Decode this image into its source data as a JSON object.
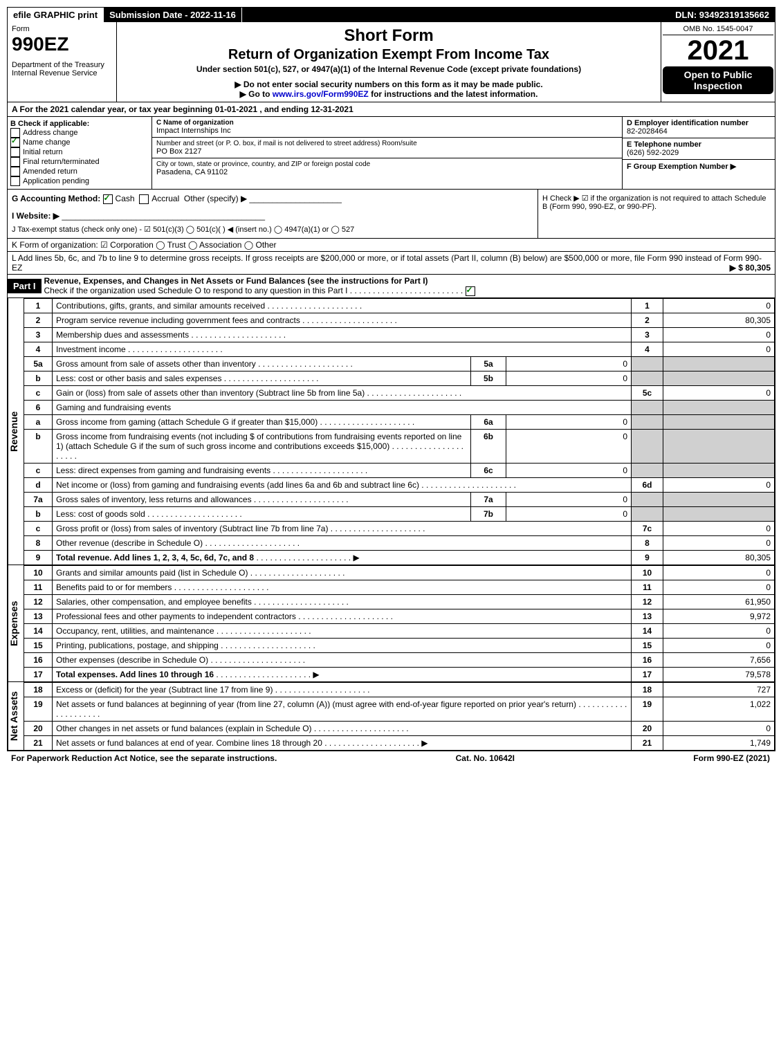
{
  "top": {
    "efile": "efile GRAPHIC print",
    "submission": "Submission Date - 2022-11-16",
    "dln": "DLN: 93492319135662"
  },
  "header": {
    "form_word": "Form",
    "form_no": "990EZ",
    "dept": "Department of the Treasury",
    "irs": "Internal Revenue Service",
    "title1": "Short Form",
    "title2": "Return of Organization Exempt From Income Tax",
    "sub1": "Under section 501(c), 527, or 4947(a)(1) of the Internal Revenue Code (except private foundations)",
    "sub2": "▶ Do not enter social security numbers on this form as it may be made public.",
    "sub3": "▶ Go to www.irs.gov/Form990EZ for instructions and the latest information.",
    "omb": "OMB No. 1545-0047",
    "year": "2021",
    "open": "Open to Public Inspection"
  },
  "section_a": "A  For the 2021 calendar year, or tax year beginning 01-01-2021 , and ending 12-31-2021",
  "b": {
    "label": "B  Check if applicable:",
    "items": [
      "Address change",
      "Name change",
      "Initial return",
      "Final return/terminated",
      "Amended return",
      "Application pending"
    ],
    "checked": [
      false,
      true,
      false,
      false,
      false,
      false
    ]
  },
  "c": {
    "name_label": "C Name of organization",
    "name": "Impact Internships Inc",
    "addr_label": "Number and street (or P. O. box, if mail is not delivered to street address)       Room/suite",
    "addr": "PO Box 2127",
    "city_label": "City or town, state or province, country, and ZIP or foreign postal code",
    "city": "Pasadena, CA  91102"
  },
  "d": {
    "label": "D Employer identification number",
    "value": "82-2028464"
  },
  "e": {
    "label": "E Telephone number",
    "value": "(626) 592-2029"
  },
  "f": {
    "label": "F Group Exemption Number  ▶",
    "value": ""
  },
  "g": {
    "label": "G Accounting Method:",
    "cash": "Cash",
    "accrual": "Accrual",
    "other": "Other (specify) ▶"
  },
  "h": {
    "text": "H  Check ▶ ☑ if the organization is not required to attach Schedule B (Form 990, 990-EZ, or 990-PF)."
  },
  "i": {
    "label": "I Website: ▶"
  },
  "j": {
    "label": "J Tax-exempt status (check only one) - ☑ 501(c)(3)  ◯ 501(c)(  ) ◀ (insert no.)  ◯ 4947(a)(1) or  ◯ 527"
  },
  "k": {
    "label": "K Form of organization:  ☑ Corporation   ◯ Trust   ◯ Association   ◯ Other"
  },
  "l": {
    "text": "L Add lines 5b, 6c, and 7b to line 9 to determine gross receipts. If gross receipts are $200,000 or more, or if total assets (Part II, column (B) below) are $500,000 or more, file Form 990 instead of Form 990-EZ",
    "amount": "▶ $ 80,305"
  },
  "part1": {
    "title": "Part I",
    "desc": "Revenue, Expenses, and Changes in Net Assets or Fund Balances (see the instructions for Part I)",
    "check": "Check if the organization used Schedule O to respond to any question in this Part I"
  },
  "side_labels": {
    "rev": "Revenue",
    "exp": "Expenses",
    "net": "Net Assets"
  },
  "revenue": [
    {
      "n": "1",
      "label": "Contributions, gifts, grants, and similar amounts received",
      "ln": "1",
      "amt": "0"
    },
    {
      "n": "2",
      "label": "Program service revenue including government fees and contracts",
      "ln": "2",
      "amt": "80,305"
    },
    {
      "n": "3",
      "label": "Membership dues and assessments",
      "ln": "3",
      "amt": "0"
    },
    {
      "n": "4",
      "label": "Investment income",
      "ln": "4",
      "amt": "0"
    },
    {
      "n": "5a",
      "label": "Gross amount from sale of assets other than inventory",
      "sub": "5a",
      "subv": "0"
    },
    {
      "n": "b",
      "label": "Less: cost or other basis and sales expenses",
      "sub": "5b",
      "subv": "0"
    },
    {
      "n": "c",
      "label": "Gain or (loss) from sale of assets other than inventory (Subtract line 5b from line 5a)",
      "ln": "5c",
      "amt": "0"
    },
    {
      "n": "6",
      "label": "Gaming and fundraising events"
    },
    {
      "n": "a",
      "label": "Gross income from gaming (attach Schedule G if greater than $15,000)",
      "sub": "6a",
      "subv": "0"
    },
    {
      "n": "b",
      "label": "Gross income from fundraising events (not including $            of contributions from fundraising events reported on line 1) (attach Schedule G if the sum of such gross income and contributions exceeds $15,000)",
      "sub": "6b",
      "subv": "0"
    },
    {
      "n": "c",
      "label": "Less: direct expenses from gaming and fundraising events",
      "sub": "6c",
      "subv": "0"
    },
    {
      "n": "d",
      "label": "Net income or (loss) from gaming and fundraising events (add lines 6a and 6b and subtract line 6c)",
      "ln": "6d",
      "amt": "0"
    },
    {
      "n": "7a",
      "label": "Gross sales of inventory, less returns and allowances",
      "sub": "7a",
      "subv": "0"
    },
    {
      "n": "b",
      "label": "Less: cost of goods sold",
      "sub": "7b",
      "subv": "0"
    },
    {
      "n": "c",
      "label": "Gross profit or (loss) from sales of inventory (Subtract line 7b from line 7a)",
      "ln": "7c",
      "amt": "0"
    },
    {
      "n": "8",
      "label": "Other revenue (describe in Schedule O)",
      "ln": "8",
      "amt": "0"
    },
    {
      "n": "9",
      "label": "Total revenue. Add lines 1, 2, 3, 4, 5c, 6d, 7c, and 8",
      "ln": "9",
      "amt": "80,305",
      "bold": true,
      "arrow": true
    }
  ],
  "expenses": [
    {
      "n": "10",
      "label": "Grants and similar amounts paid (list in Schedule O)",
      "ln": "10",
      "amt": "0"
    },
    {
      "n": "11",
      "label": "Benefits paid to or for members",
      "ln": "11",
      "amt": "0"
    },
    {
      "n": "12",
      "label": "Salaries, other compensation, and employee benefits",
      "ln": "12",
      "amt": "61,950"
    },
    {
      "n": "13",
      "label": "Professional fees and other payments to independent contractors",
      "ln": "13",
      "amt": "9,972"
    },
    {
      "n": "14",
      "label": "Occupancy, rent, utilities, and maintenance",
      "ln": "14",
      "amt": "0"
    },
    {
      "n": "15",
      "label": "Printing, publications, postage, and shipping",
      "ln": "15",
      "amt": "0"
    },
    {
      "n": "16",
      "label": "Other expenses (describe in Schedule O)",
      "ln": "16",
      "amt": "7,656"
    },
    {
      "n": "17",
      "label": "Total expenses. Add lines 10 through 16",
      "ln": "17",
      "amt": "79,578",
      "bold": true,
      "arrow": true
    }
  ],
  "netassets": [
    {
      "n": "18",
      "label": "Excess or (deficit) for the year (Subtract line 17 from line 9)",
      "ln": "18",
      "amt": "727"
    },
    {
      "n": "19",
      "label": "Net assets or fund balances at beginning of year (from line 27, column (A)) (must agree with end-of-year figure reported on prior year's return)",
      "ln": "19",
      "amt": "1,022"
    },
    {
      "n": "20",
      "label": "Other changes in net assets or fund balances (explain in Schedule O)",
      "ln": "20",
      "amt": "0"
    },
    {
      "n": "21",
      "label": "Net assets or fund balances at end of year. Combine lines 18 through 20",
      "ln": "21",
      "amt": "1,749",
      "arrow": true
    }
  ],
  "footer": {
    "left": "For Paperwork Reduction Act Notice, see the separate instructions.",
    "mid": "Cat. No. 10642I",
    "right": "Form 990-EZ (2021)"
  }
}
